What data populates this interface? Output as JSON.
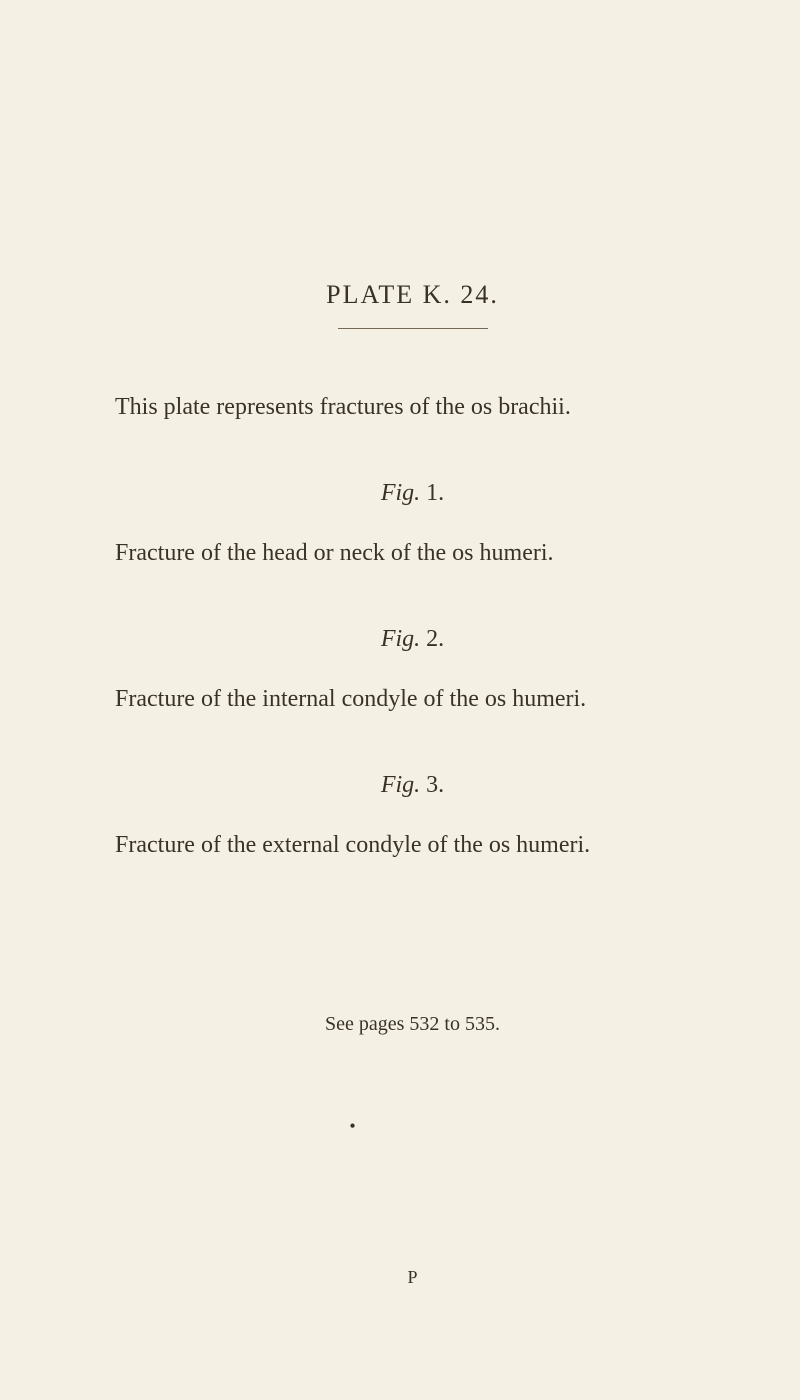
{
  "plate_title": "PLATE K. 24.",
  "intro": "This plate represents fractures of the os brachii.",
  "fig1": {
    "label_italic": "Fig.",
    "label_num": " 1.",
    "desc": "Fracture of the head or neck of the os humeri."
  },
  "fig2": {
    "label_italic": "Fig.",
    "label_num": " 2.",
    "desc": "Fracture of the internal condyle of the os humeri."
  },
  "fig3": {
    "label_italic": "Fig.",
    "label_num": " 3.",
    "desc": "Fracture of the external condyle of the os humeri."
  },
  "see_pages": "See pages 532 to 535.",
  "dot": "•",
  "footer": "P",
  "colors": {
    "background": "#f5f0e4",
    "text": "#3a3228",
    "hr": "#756a58"
  },
  "typography": {
    "font_family": "Georgia, Times New Roman, serif",
    "title_fontsize": 26,
    "body_fontsize": 24,
    "see_fontsize": 20,
    "footer_fontsize": 18
  }
}
